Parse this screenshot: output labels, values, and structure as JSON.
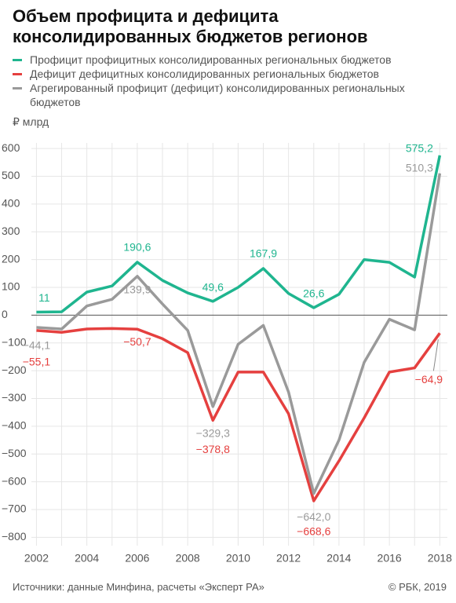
{
  "chart_data": {
    "type": "line",
    "title": "Объем профицита и дефицита консолидированных бюджетов регионов",
    "y_unit": "₽ млрд",
    "x": [
      2002,
      2003,
      2004,
      2005,
      2006,
      2007,
      2008,
      2009,
      2010,
      2011,
      2012,
      2013,
      2014,
      2015,
      2016,
      2017,
      2018
    ],
    "series": [
      {
        "name": "Профицит профицитных консолидированных региональных бюджетов",
        "color": "#1fb58f",
        "values": [
          11,
          12,
          83,
          105,
          190.6,
          125,
          80,
          49.6,
          100,
          167.9,
          78,
          26.6,
          75,
          200,
          190,
          137,
          575.2
        ],
        "value_labels": [
          "11",
          null,
          null,
          null,
          "190,6",
          null,
          null,
          "49,6",
          null,
          "167,9",
          null,
          "26,6",
          null,
          null,
          null,
          null,
          "575,2"
        ]
      },
      {
        "name": "Дефицит дефицитных консолидированных региональных бюджетов",
        "color": "#e5403f",
        "values": [
          -55.1,
          -62,
          -50,
          -48,
          -50.7,
          -85,
          -135,
          -378.8,
          -205,
          -205,
          -355,
          -668.6,
          -525,
          -370,
          -205,
          -190,
          -64.9
        ],
        "value_labels": [
          "−55,1",
          null,
          null,
          null,
          "−50,7",
          null,
          null,
          "−378,8",
          null,
          null,
          null,
          "−668,6",
          null,
          null,
          null,
          null,
          "−64,9"
        ]
      },
      {
        "name": "Агрегированный профицит (дефицит) консолидированных региональных бюджетов",
        "color": "#9a9a9a",
        "values": [
          -44.1,
          -50,
          33,
          57,
          139.9,
          40,
          -55,
          -329.3,
          -105,
          -37,
          -277,
          -642.0,
          -450,
          -170,
          -15,
          -53,
          510.3
        ],
        "value_labels": [
          "−44,1",
          null,
          null,
          null,
          "139,9",
          null,
          null,
          "−329,3",
          null,
          null,
          null,
          "−642,0",
          null,
          null,
          null,
          null,
          "510,3"
        ]
      }
    ],
    "xlim": [
      2001.8,
      2018.3
    ],
    "xticks": [
      2002,
      2004,
      2006,
      2008,
      2010,
      2012,
      2014,
      2016,
      2018
    ],
    "ylim": [
      -830,
      620
    ],
    "yticks": [
      {
        "value": -800,
        "label": "−800"
      },
      {
        "value": -700,
        "label": "−700"
      },
      {
        "value": -600,
        "label": "−600"
      },
      {
        "value": -500,
        "label": "−500"
      },
      {
        "value": -400,
        "label": "−400"
      },
      {
        "value": -300,
        "label": "−300"
      },
      {
        "value": -200,
        "label": "−200"
      },
      {
        "value": -100,
        "label": "−100"
      },
      0,
      100,
      200,
      300,
      400,
      500,
      600
    ],
    "grid": true,
    "source": "Источники: данные Минфина, расчеты «Эксперт РА»",
    "copyright": "© РБК, 2019"
  }
}
